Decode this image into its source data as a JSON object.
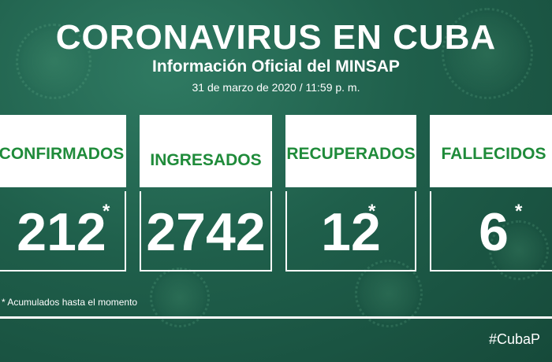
{
  "header": {
    "title": "CORONAVIRUS EN CUBA",
    "subtitle": "Información Oficial del MINSAP",
    "date": "31 de marzo de 2020 / 11:59 p. m."
  },
  "cards": [
    {
      "label": "CONFIRMADOS",
      "value": "212",
      "asterisk": "*"
    },
    {
      "label": "INGRESADOS",
      "value": "2742",
      "asterisk": ""
    },
    {
      "label": "RECUPERADOS",
      "value": "12",
      "asterisk": "*"
    },
    {
      "label": "FALLECIDOS",
      "value": "6",
      "asterisk": "*"
    }
  ],
  "note": "* Acumulados hasta el momento",
  "footer": {
    "hashtag": "#CubaP"
  },
  "colors": {
    "background": "#1f5f4b",
    "label_green": "#1f8b3a",
    "text": "#ffffff"
  }
}
